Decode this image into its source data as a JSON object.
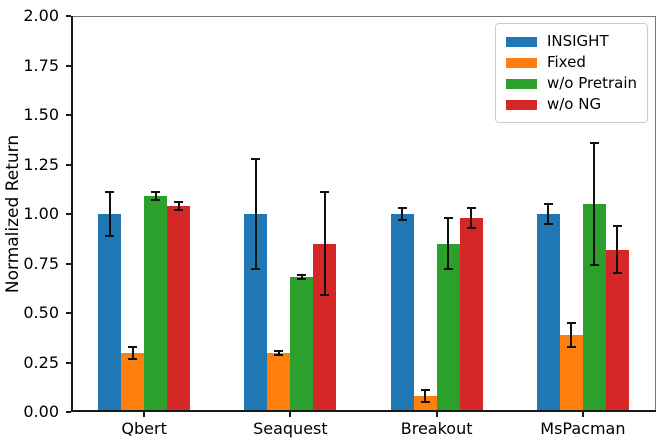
{
  "chart_data": {
    "type": "bar",
    "title": "",
    "xlabel": "",
    "ylabel": "Normalized Return",
    "ylim": [
      0.0,
      2.0
    ],
    "yticks": [
      "0.00",
      "0.25",
      "0.50",
      "0.75",
      "1.00",
      "1.25",
      "1.50",
      "1.75",
      "2.00"
    ],
    "categories": [
      "Qbert",
      "Seaquest",
      "Breakout",
      "MsPacman"
    ],
    "grid": false,
    "legend": {
      "position": "upper-right",
      "entries": [
        "INSIGHT",
        "Fixed",
        "w/o Pretrain",
        "w/o NG"
      ]
    },
    "error_bar_color": "#111111",
    "series": [
      {
        "name": "INSIGHT",
        "color": "#1f77b4",
        "values": [
          1.0,
          1.0,
          1.0,
          1.0
        ],
        "errors": [
          0.11,
          0.28,
          0.03,
          0.05
        ]
      },
      {
        "name": "Fixed",
        "color": "#ff7f0e",
        "values": [
          0.3,
          0.3,
          0.08,
          0.39
        ],
        "errors": [
          0.03,
          0.01,
          0.03,
          0.06
        ]
      },
      {
        "name": "w/o Pretrain",
        "color": "#2ca02c",
        "values": [
          1.09,
          0.68,
          0.85,
          1.05
        ],
        "errors": [
          0.02,
          0.01,
          0.13,
          0.31
        ]
      },
      {
        "name": "w/o NG",
        "color": "#d62728",
        "values": [
          1.04,
          0.85,
          0.98,
          0.82
        ],
        "errors": [
          0.02,
          0.26,
          0.05,
          0.12
        ]
      }
    ]
  }
}
